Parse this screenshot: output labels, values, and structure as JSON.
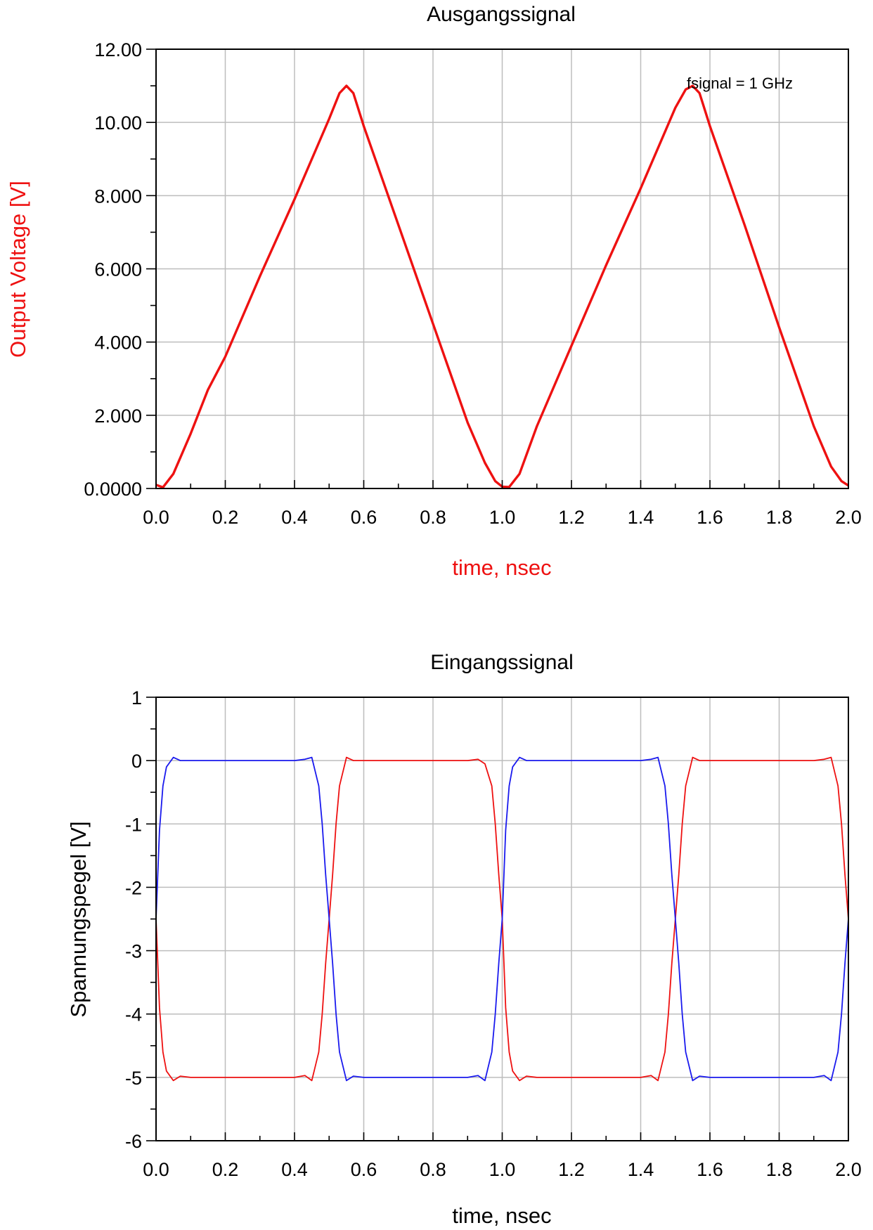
{
  "chart_data": [
    {
      "type": "line",
      "title": "Ausgangssignal",
      "xlabel": "time, nsec",
      "ylabel": "Output Voltage [V]",
      "xlim": [
        0,
        2
      ],
      "ylim": [
        0,
        12
      ],
      "x_ticks": [
        "0.0",
        "0.2",
        "0.4",
        "0.6",
        "0.8",
        "1.0",
        "1.2",
        "1.4",
        "1.6",
        "1.8",
        "2.0"
      ],
      "y_ticks": [
        "0.0000",
        "2.000",
        "4.000",
        "6.000",
        "8.000",
        "10.00",
        "12.00"
      ],
      "grid": true,
      "annotation": "fsignal = 1 GHz",
      "colors": {
        "series": "#ee1111",
        "axis_label": "#ee1111"
      },
      "series": [
        {
          "color": "#ee1111",
          "x": [
            0.0,
            0.02,
            0.05,
            0.1,
            0.15,
            0.2,
            0.3,
            0.4,
            0.5,
            0.53,
            0.55,
            0.57,
            0.6,
            0.7,
            0.8,
            0.9,
            0.95,
            0.98,
            1.0,
            1.02,
            1.05,
            1.1,
            1.2,
            1.3,
            1.4,
            1.5,
            1.53,
            1.55,
            1.57,
            1.6,
            1.7,
            1.8,
            1.9,
            1.95,
            1.98,
            2.0
          ],
          "y": [
            0.1,
            0.03,
            0.4,
            1.5,
            2.7,
            3.6,
            5.8,
            7.9,
            10.1,
            10.8,
            11.0,
            10.8,
            9.9,
            7.2,
            4.5,
            1.8,
            0.7,
            0.2,
            0.05,
            0.04,
            0.4,
            1.7,
            3.9,
            6.1,
            8.2,
            10.4,
            10.9,
            11.0,
            10.8,
            9.9,
            7.2,
            4.4,
            1.7,
            0.6,
            0.2,
            0.08
          ]
        }
      ]
    },
    {
      "type": "line",
      "title": "Eingangssignal",
      "xlabel": "time, nsec",
      "ylabel": "Spannungspegel [V]",
      "xlim": [
        0,
        2
      ],
      "ylim": [
        -6,
        1
      ],
      "x_ticks": [
        "0.0",
        "0.2",
        "0.4",
        "0.6",
        "0.8",
        "1.0",
        "1.2",
        "1.4",
        "1.6",
        "1.8",
        "2.0"
      ],
      "y_ticks": [
        "1",
        "0",
        "-1",
        "-2",
        "-3",
        "-4",
        "-5",
        "-6"
      ],
      "grid": true,
      "colors": {
        "axis_label": "#000000"
      },
      "series": [
        {
          "color": "#ee1111",
          "x": [
            0.0,
            0.01,
            0.02,
            0.03,
            0.05,
            0.07,
            0.1,
            0.2,
            0.3,
            0.4,
            0.43,
            0.45,
            0.47,
            0.48,
            0.49,
            0.5,
            0.51,
            0.52,
            0.53,
            0.55,
            0.57,
            0.6,
            0.7,
            0.8,
            0.9,
            0.93,
            0.95,
            0.97,
            0.98,
            0.99,
            1.0,
            1.01,
            1.02,
            1.03,
            1.05,
            1.07,
            1.1,
            1.2,
            1.3,
            1.4,
            1.43,
            1.45,
            1.47,
            1.48,
            1.49,
            1.5,
            1.51,
            1.52,
            1.53,
            1.55,
            1.57,
            1.6,
            1.7,
            1.8,
            1.9,
            1.93,
            1.95,
            1.97,
            1.98,
            1.99,
            2.0
          ],
          "y": [
            -2.5,
            -3.9,
            -4.6,
            -4.9,
            -5.05,
            -4.98,
            -5.0,
            -5.0,
            -5.0,
            -5.0,
            -4.97,
            -5.05,
            -4.6,
            -4.0,
            -3.2,
            -2.5,
            -1.8,
            -1.0,
            -0.4,
            0.05,
            0.0,
            0.0,
            0.0,
            0.0,
            0.0,
            0.02,
            -0.05,
            -0.4,
            -1.0,
            -1.8,
            -2.5,
            -3.9,
            -4.6,
            -4.9,
            -5.05,
            -4.98,
            -5.0,
            -5.0,
            -5.0,
            -5.0,
            -4.97,
            -5.05,
            -4.6,
            -4.0,
            -3.2,
            -2.5,
            -1.8,
            -1.0,
            -0.4,
            0.05,
            0.0,
            0.0,
            0.0,
            0.0,
            0.0,
            0.02,
            0.05,
            -0.4,
            -1.0,
            -1.8,
            -2.5
          ]
        },
        {
          "color": "#1a1aee",
          "x": [
            0.0,
            0.01,
            0.02,
            0.03,
            0.05,
            0.07,
            0.1,
            0.2,
            0.3,
            0.4,
            0.43,
            0.45,
            0.47,
            0.48,
            0.49,
            0.5,
            0.51,
            0.52,
            0.53,
            0.55,
            0.57,
            0.6,
            0.7,
            0.8,
            0.9,
            0.93,
            0.95,
            0.97,
            0.98,
            0.99,
            1.0,
            1.01,
            1.02,
            1.03,
            1.05,
            1.07,
            1.1,
            1.2,
            1.3,
            1.4,
            1.43,
            1.45,
            1.47,
            1.48,
            1.49,
            1.5,
            1.51,
            1.52,
            1.53,
            1.55,
            1.57,
            1.6,
            1.7,
            1.8,
            1.9,
            1.93,
            1.95,
            1.97,
            1.98,
            1.99,
            2.0
          ],
          "y": [
            -2.5,
            -1.1,
            -0.4,
            -0.1,
            0.05,
            0.0,
            0.0,
            0.0,
            0.0,
            0.0,
            0.02,
            0.05,
            -0.4,
            -1.0,
            -1.8,
            -2.5,
            -3.2,
            -4.0,
            -4.6,
            -5.05,
            -4.98,
            -5.0,
            -5.0,
            -5.0,
            -5.0,
            -4.97,
            -5.05,
            -4.6,
            -4.0,
            -3.2,
            -2.5,
            -1.1,
            -0.4,
            -0.1,
            0.05,
            0.0,
            0.0,
            0.0,
            0.0,
            0.0,
            0.02,
            0.05,
            -0.4,
            -1.0,
            -1.8,
            -2.5,
            -3.2,
            -4.0,
            -4.6,
            -5.05,
            -4.98,
            -5.0,
            -5.0,
            -5.0,
            -5.0,
            -4.97,
            -5.05,
            -4.6,
            -4.0,
            -3.2,
            -2.5
          ]
        }
      ]
    }
  ]
}
